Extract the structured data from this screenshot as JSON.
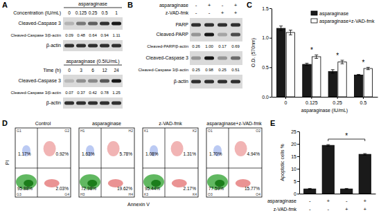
{
  "chart_data": [
    {
      "type": "bar",
      "title": "C",
      "categories": [
        "0",
        "0.125",
        "0.25",
        "0.5"
      ],
      "x_label": "asparaginase (IU/mL)",
      "y_label": "O.D. (570nm)",
      "series": [
        {
          "name": "asparaginase",
          "color": "#1a1a1a",
          "values": [
            1.16,
            0.55,
            0.43,
            0.37
          ],
          "errors": [
            0.04,
            0.02,
            0.03,
            0.01
          ]
        },
        {
          "name": "asparaginase+z-VAD-fmk",
          "color": "#ffffff",
          "values": [
            1.09,
            0.68,
            0.59,
            0.48
          ],
          "errors": [
            0.04,
            0.03,
            0.03,
            0.02
          ]
        }
      ],
      "ylim": [
        0,
        1.5
      ],
      "yticks": [
        {
          "value": 0,
          "label": "0.0"
        },
        0.5,
        {
          "value": 1,
          "label": "1.0"
        },
        1.5
      ],
      "legend": "upper right",
      "annotations": [
        {
          "text": "*",
          "category": "0.125"
        },
        {
          "text": "*",
          "category": "0.25"
        },
        {
          "text": "*",
          "category": "0.5"
        }
      ]
    },
    {
      "type": "bar",
      "title": "E",
      "categories": [
        null,
        null,
        null,
        null
      ],
      "y_label": "Apoptotic cells %",
      "values": [
        1.9,
        19.4,
        1.9,
        15.8
      ],
      "errors": [
        0.2,
        0.3,
        0.2,
        0.3
      ],
      "color": "#1a1a1a",
      "ylim": [
        0,
        25
      ],
      "yticks": [
        0,
        5,
        10,
        15,
        20,
        25
      ],
      "treatments": [
        {
          "name": "asparaginase",
          "signs": [
            "-",
            "+",
            "-",
            "+"
          ]
        },
        {
          "name": "z-VAD-fmk",
          "signs": [
            "-",
            "-",
            "+",
            "+"
          ]
        }
      ],
      "annotations": [
        {
          "text": "*",
          "between": [
            1,
            3
          ]
        }
      ]
    }
  ],
  "blots": {
    "A": {
      "label": "A",
      "sections": [
        {
          "header": "asparaginase",
          "row_title": "Concentration (IU/mL)",
          "lanes": [
            "0",
            "0.125",
            "0.25",
            "0.5",
            "1"
          ],
          "bands": [
            "Cleaved-Caspase 3",
            "β-actin"
          ],
          "ratio_label": "Cleaved-Caspase 3/β-actin",
          "ratios": [
            "0.09",
            "0.48",
            "0.64",
            "0.94",
            "1.11"
          ]
        },
        {
          "header": "asparaginase (0.5IU/mL)",
          "row_title": "Time (h)",
          "lanes": [
            "0",
            "3",
            "6",
            "12",
            "24"
          ],
          "bands": [
            "Cleaved-Caspase 3",
            "β-actin"
          ],
          "ratio_label": "Cleaved-Caspase 3/β-actin",
          "ratios": [
            "0.07",
            "0.37",
            "0.42",
            "0.78",
            "1.25"
          ]
        }
      ]
    },
    "B": {
      "label": "B",
      "treatments": [
        {
          "name": "asparaginase",
          "signs": [
            "-",
            "+",
            "-",
            "+"
          ]
        },
        {
          "name": "z-VAD-fmk",
          "signs": [
            "-",
            "-",
            "+",
            "+"
          ]
        }
      ],
      "rows": [
        {
          "bands": [
            "PARP",
            "Cleaved-PARP"
          ],
          "ratio_label": "Cleaved-PARP/β-actin",
          "ratios": [
            "0.26",
            "1.00",
            "0.17",
            "0.69"
          ]
        },
        {
          "bands": [
            "Cleaved-Caspase 3"
          ],
          "ratio_label": "Cleaved-Caspase 3/β-actin",
          "ratios": [
            "0.25",
            "0.98",
            "0.25",
            "0.51"
          ]
        },
        {
          "bands": [
            "β-actin"
          ]
        }
      ]
    }
  },
  "flow": {
    "label": "D",
    "x_label": "Annexin V",
    "y_label": "PI",
    "plots": [
      {
        "title": "Control",
        "gates": [
          "G1",
          "G2",
          "G3",
          "G4"
        ],
        "percents": [
          "1.17%",
          "0.92%",
          "95.88%",
          "2.03%"
        ]
      },
      {
        "title": "asparaginase",
        "gates": [
          "H1",
          "H2",
          "H3",
          "H4"
        ],
        "percents": [
          "1.63%",
          "5.78%",
          "72.98%",
          "19.62%"
        ]
      },
      {
        "title": "z-VAD-fmk",
        "gates": [
          "K1",
          "K2",
          "K3",
          "K4"
        ],
        "percents": [
          "1.08%",
          "1.31%",
          "95.44%",
          "2.17%"
        ]
      },
      {
        "title": "asparaginase+z-VAD-fmk",
        "gates": [
          "O1",
          "O2",
          "O3",
          "O4"
        ],
        "percents": [
          "1.70%",
          "4.94%",
          "77.59%",
          "15.77%"
        ]
      }
    ]
  }
}
